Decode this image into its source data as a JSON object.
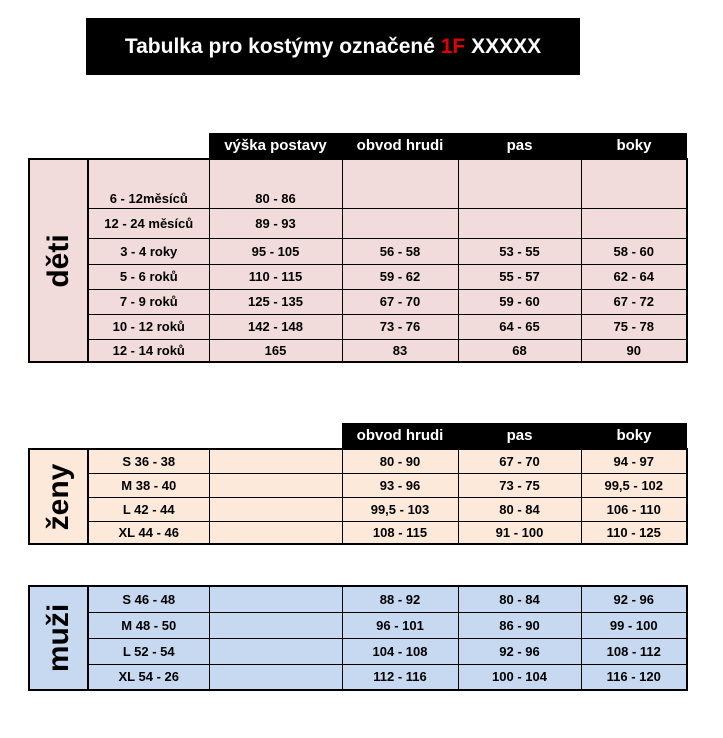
{
  "title": {
    "prefix": "Tabulka pro kostýmy označené ",
    "code": "1F",
    "suffix": " XXXXX",
    "code_color": "#e00000"
  },
  "colors": {
    "deti": "#f2dcdb",
    "zeny": "#fde9d9",
    "muzi": "#c6d9f1"
  },
  "tables": [
    {
      "group": "děti",
      "headers": [
        "výška postavy",
        "obvod hrudi",
        "pas",
        "boky"
      ],
      "rows": [
        [
          "6 - 12měsíců",
          "80 - 86",
          "",
          "",
          ""
        ],
        [
          "12 - 24 měsíců",
          "89 - 93",
          "",
          "",
          ""
        ],
        [
          "3 - 4 roky",
          "95 - 105",
          "56 - 58",
          "53 - 55",
          "58 - 60"
        ],
        [
          "5 - 6 roků",
          "110 - 115",
          "59 - 62",
          "55 - 57",
          "62 - 64"
        ],
        [
          "7 - 9 roků",
          "125 - 135",
          "67 - 70",
          "59 - 60",
          "67 - 72"
        ],
        [
          "10 - 12 roků",
          "142 - 148",
          "73 - 76",
          "64 - 65",
          "75 - 78"
        ],
        [
          "12 - 14 roků",
          "165",
          "83",
          "68",
          "90"
        ]
      ]
    },
    {
      "group": "ženy",
      "headers": [
        "",
        "obvod hrudi",
        "pas",
        "boky"
      ],
      "rows": [
        [
          "S 36 - 38",
          "",
          "80 - 90",
          "67 - 70",
          "94 - 97"
        ],
        [
          "M 38 - 40",
          "",
          "93 - 96",
          "73 - 75",
          "99,5 - 102"
        ],
        [
          "L 42 - 44",
          "",
          "99,5 - 103",
          "80 - 84",
          "106 - 110"
        ],
        [
          "XL 44 - 46",
          "",
          "108 - 115",
          "91 - 100",
          "110 - 125"
        ]
      ]
    },
    {
      "group": "muži",
      "headers": null,
      "rows": [
        [
          "S 46 - 48",
          "",
          "88 - 92",
          "80 - 84",
          "92 - 96"
        ],
        [
          "M 48 - 50",
          "",
          "96 - 101",
          "86 - 90",
          "99 - 100"
        ],
        [
          "L 52 - 54",
          "",
          "104 - 108",
          "92 - 96",
          "108 - 112"
        ],
        [
          "XL 54 - 26",
          "",
          "112 - 116",
          "100 - 104",
          "116 - 120"
        ]
      ]
    }
  ]
}
